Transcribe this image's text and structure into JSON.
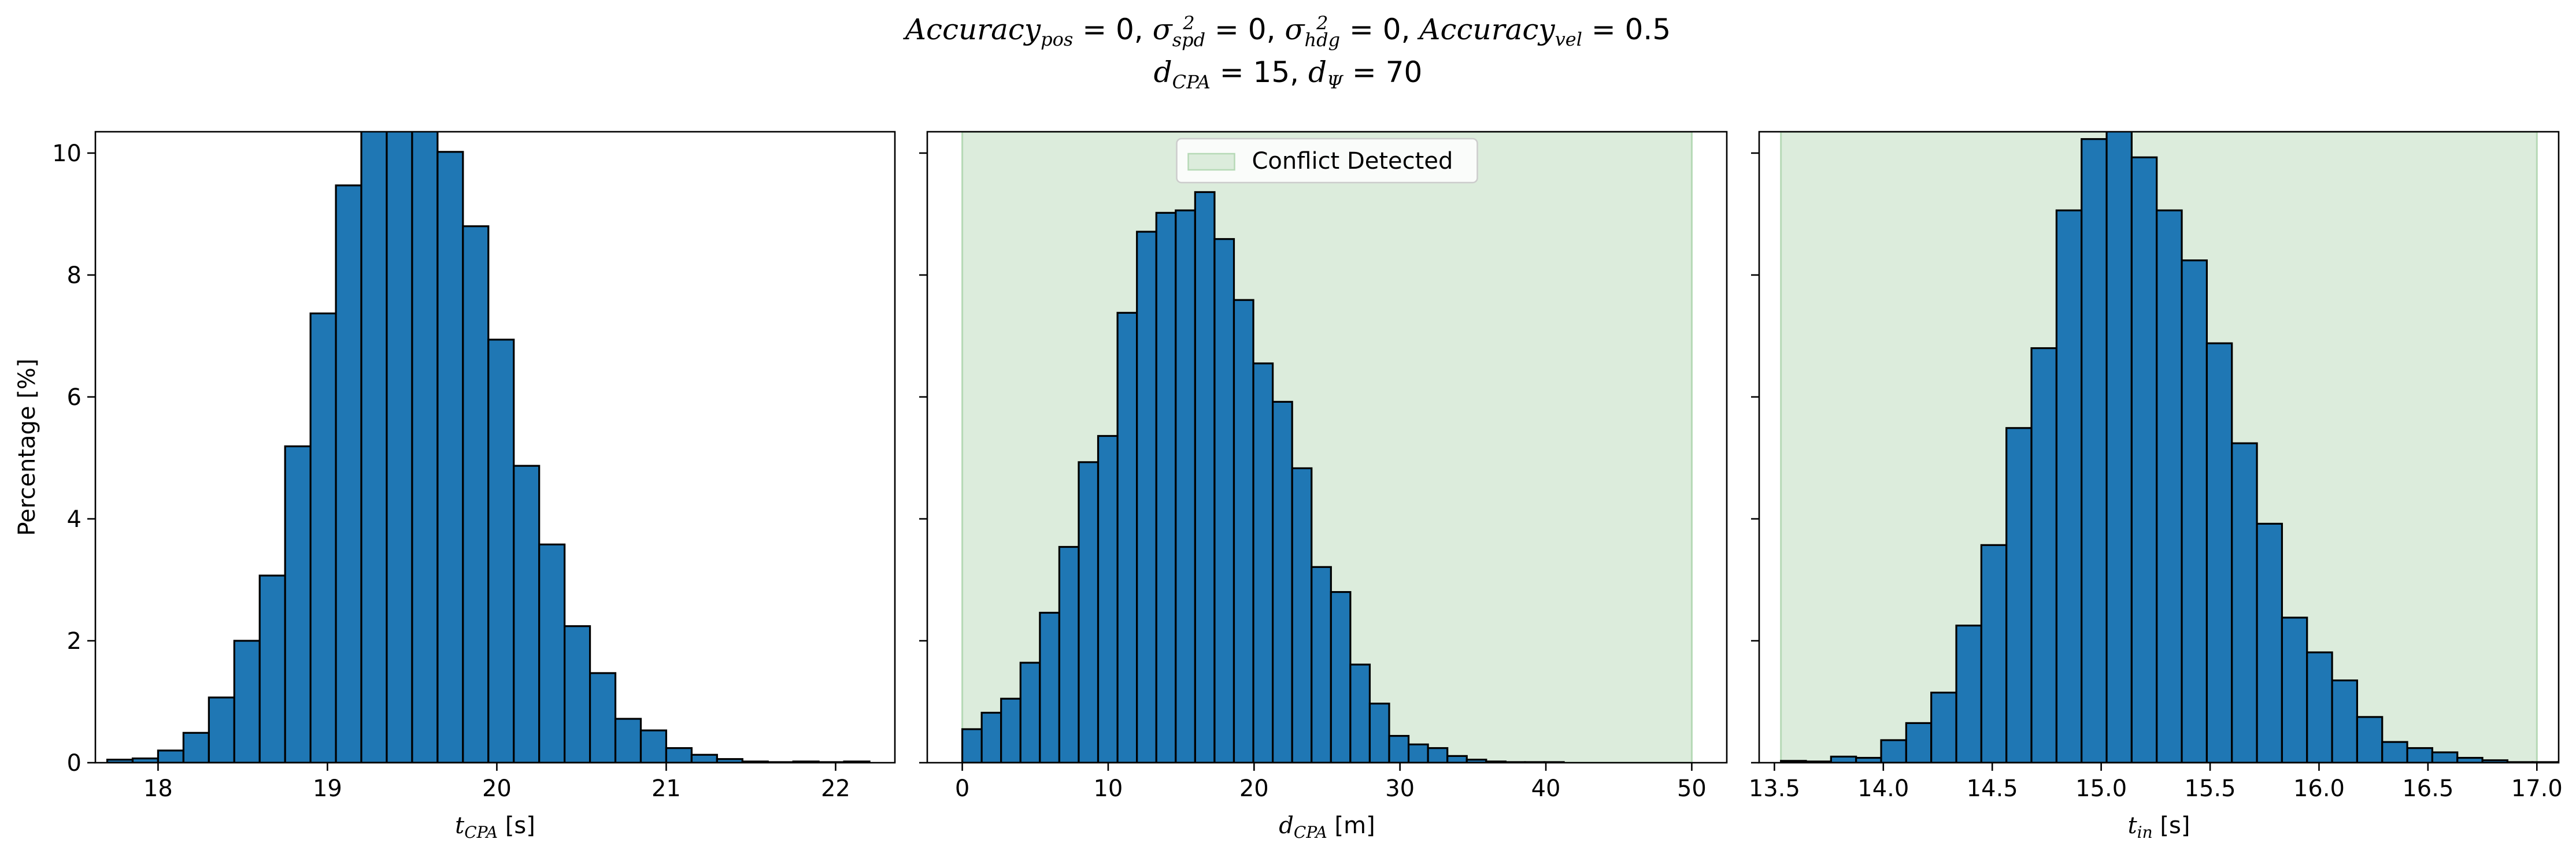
{
  "figure": {
    "title_line1": "Accuracy_pos = 0, σ²_spd = 0, σ²_hdg = 0, Accuracy_vel = 0.5",
    "title_line2": "d_CPA = 15, d_Ψ = 70"
  },
  "colors": {
    "bar_fill": "#1f77b4",
    "bar_edge": "#000000",
    "conflict_fill": "#dcecdc",
    "conflict_edge": "#b6d9b6"
  },
  "chart_data": [
    {
      "type": "bar",
      "xlabel_sym": "t",
      "xlabel_sub": "CPA",
      "xlabel_unit": " [s]",
      "ylabel": "Percentage [%]",
      "xlim": [
        17.63,
        22.35
      ],
      "ylim": [
        0,
        10.35
      ],
      "xticks": [
        18,
        19,
        20,
        21,
        22
      ],
      "xtick_labels": [
        "18",
        "19",
        "20",
        "21",
        "22"
      ],
      "yticks": [
        0,
        2,
        4,
        6,
        8,
        10
      ],
      "ytick_labels": [
        "0",
        "2",
        "4",
        "6",
        "8",
        "10"
      ],
      "bin_start": 17.7,
      "bin_width": 0.15,
      "values": [
        0.05,
        0.07,
        0.2,
        0.49,
        1.07,
        2.0,
        3.07,
        5.19,
        7.37,
        9.47,
        10.6,
        10.6,
        10.6,
        10.02,
        8.8,
        6.94,
        4.87,
        3.58,
        2.24,
        1.47,
        0.72,
        0.53,
        0.24,
        0.13,
        0.06,
        0.02,
        0.01,
        0.02,
        0.01,
        0.02
      ],
      "shade": null,
      "legend": null
    },
    {
      "type": "bar",
      "xlabel_sym": "d",
      "xlabel_sub": "CPA",
      "xlabel_unit": " [m]",
      "ylabel": "",
      "xlim": [
        -2.4,
        52.4
      ],
      "ylim": [
        0,
        10.35
      ],
      "xticks": [
        0,
        10,
        20,
        30,
        40,
        50
      ],
      "xtick_labels": [
        "0",
        "10",
        "20",
        "30",
        "40",
        "50"
      ],
      "yticks": [
        0,
        2,
        4,
        6,
        8,
        10
      ],
      "ytick_labels": [],
      "bin_start": 0,
      "bin_width": 1.33,
      "values": [
        0.55,
        0.82,
        1.05,
        1.64,
        2.46,
        3.54,
        4.93,
        5.36,
        7.38,
        8.71,
        9.02,
        9.06,
        9.36,
        8.59,
        7.59,
        6.55,
        5.92,
        4.83,
        3.21,
        2.8,
        1.61,
        0.97,
        0.44,
        0.3,
        0.24,
        0.11,
        0.05,
        0.02,
        0.01,
        0.01,
        0.01
      ],
      "shade": [
        0,
        50
      ],
      "legend": {
        "label": "Conflict Detected",
        "position": "upper center"
      }
    },
    {
      "type": "bar",
      "xlabel_sym": "t",
      "xlabel_sub": "in",
      "xlabel_unit": " [s]",
      "ylabel": "",
      "xlim": [
        13.43,
        17.1
      ],
      "ylim": [
        0,
        10.35
      ],
      "xticks": [
        13.5,
        14.0,
        14.5,
        15.0,
        15.5,
        16.0,
        16.5,
        17.0
      ],
      "xtick_labels": [
        "13.5",
        "14.0",
        "14.5",
        "15.0",
        "15.5",
        "16.0",
        "16.5",
        "17.0"
      ],
      "yticks": [
        0,
        2,
        4,
        6,
        8,
        10
      ],
      "ytick_labels": [],
      "bin_start": 13.53,
      "bin_width": 0.115,
      "values": [
        0.03,
        0.02,
        0.1,
        0.08,
        0.37,
        0.65,
        1.15,
        2.25,
        3.57,
        5.49,
        6.8,
        9.06,
        10.23,
        10.6,
        9.93,
        9.06,
        8.24,
        6.88,
        5.24,
        3.92,
        2.38,
        1.81,
        1.35,
        0.75,
        0.34,
        0.24,
        0.17,
        0.08,
        0.04,
        0.01,
        0.01,
        0.01
      ],
      "shade": [
        13.53,
        17.0
      ],
      "legend": null
    }
  ]
}
